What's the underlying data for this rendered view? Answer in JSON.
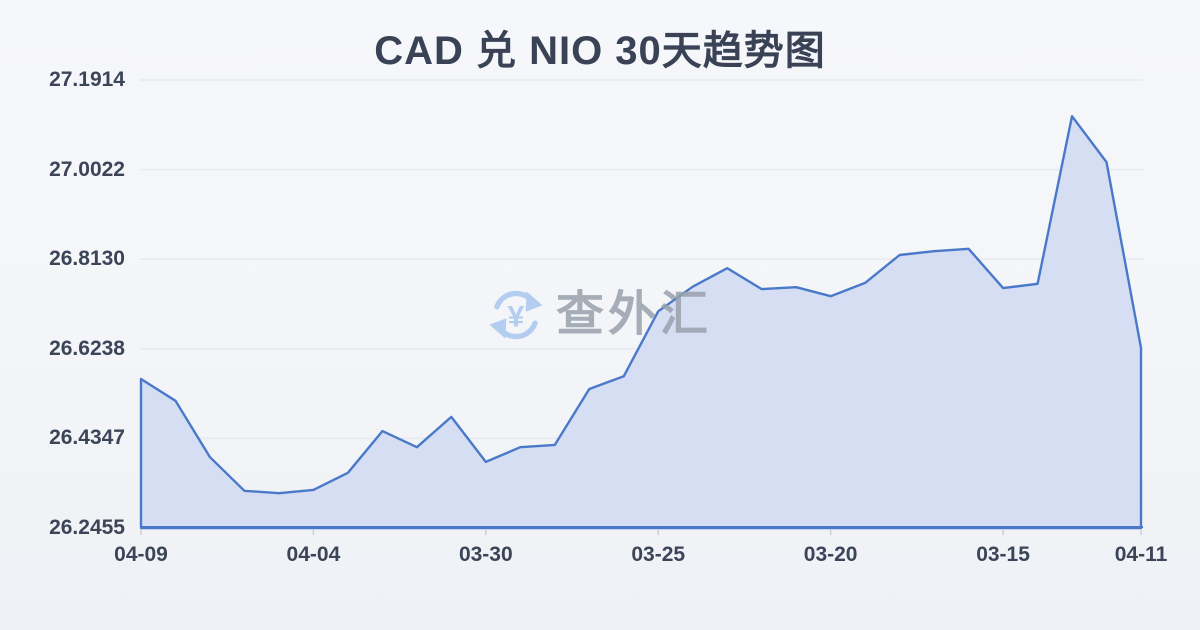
{
  "title": "CAD 兑 NIO 30天趋势图",
  "watermark": {
    "text": "查外汇",
    "icon": "currency-exchange-icon"
  },
  "colors": {
    "background_top": "#f6f7fa",
    "background_bottom": "#eef1f5",
    "title_text": "#3a4356",
    "tick_text": "#3c4458",
    "line": "#4b79ca",
    "area_fill": "#d5def2",
    "gridline": "#e7e9ee",
    "axis_line": "#4b79ca",
    "tick_mark": "#ccd0d7",
    "watermark_text": "#99a1ac",
    "watermark_icon": "#a9c7f0"
  },
  "chart_data": {
    "type": "area",
    "title": "CAD 兑 NIO 30天趋势图",
    "x": [
      "04-09",
      "04-08",
      "04-07",
      "04-06",
      "04-05",
      "04-04",
      "04-03",
      "04-02",
      "04-01",
      "03-31",
      "03-30",
      "03-29",
      "03-28",
      "03-27",
      "03-26",
      "03-25",
      "03-24",
      "03-23",
      "03-22",
      "03-21",
      "03-20",
      "03-19",
      "03-18",
      "03-17",
      "03-16",
      "03-15",
      "03-14",
      "03-13",
      "03-12",
      "04-11"
    ],
    "values": [
      26.56,
      26.514,
      26.395,
      26.324,
      26.319,
      26.326,
      26.362,
      26.45,
      26.416,
      26.48,
      26.385,
      26.416,
      26.421,
      26.539,
      26.566,
      26.703,
      26.755,
      26.794,
      26.75,
      26.754,
      26.735,
      26.763,
      26.822,
      26.83,
      26.835,
      26.752,
      26.761,
      27.115,
      27.018,
      26.626
    ],
    "x_tick_labels": [
      "04-09",
      "04-04",
      "03-30",
      "03-25",
      "03-20",
      "03-15",
      "04-11"
    ],
    "x_tick_indices": [
      0,
      5,
      10,
      15,
      20,
      25,
      29
    ],
    "y_tick_labels": [
      "27.1914",
      "27.0022",
      "26.8130",
      "26.6238",
      "26.4347",
      "26.2455"
    ],
    "ylim": [
      26.2455,
      27.1914
    ],
    "xlabel": "",
    "ylabel": "",
    "grid": true,
    "legend": false,
    "boundary_gap": false
  }
}
